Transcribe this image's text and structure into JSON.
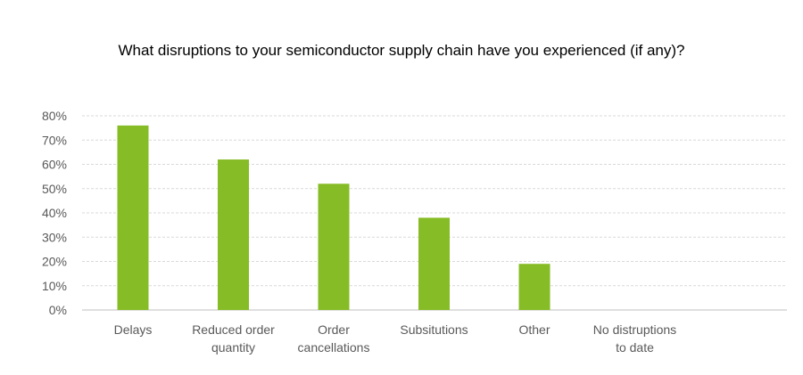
{
  "chart_data": {
    "type": "bar",
    "title": "What disruptions to your semiconductor supply chain have you experienced (if any)?",
    "categories": [
      [
        "Delays"
      ],
      [
        "Reduced order",
        "quantity"
      ],
      [
        "Order",
        "cancellations"
      ],
      [
        "Subsitutions"
      ],
      [
        "Other"
      ],
      [
        "No distruptions",
        "to date"
      ]
    ],
    "values": [
      76,
      62,
      52,
      38,
      19,
      0
    ],
    "ylim": [
      0,
      80
    ],
    "yticks": [
      "0%",
      "10%",
      "20%",
      "30%",
      "40%",
      "50%",
      "60%",
      "70%",
      "80%"
    ],
    "grid": true,
    "legend": "none",
    "bar_color": "#86BC25",
    "grid_color": "#D9D9D9"
  }
}
